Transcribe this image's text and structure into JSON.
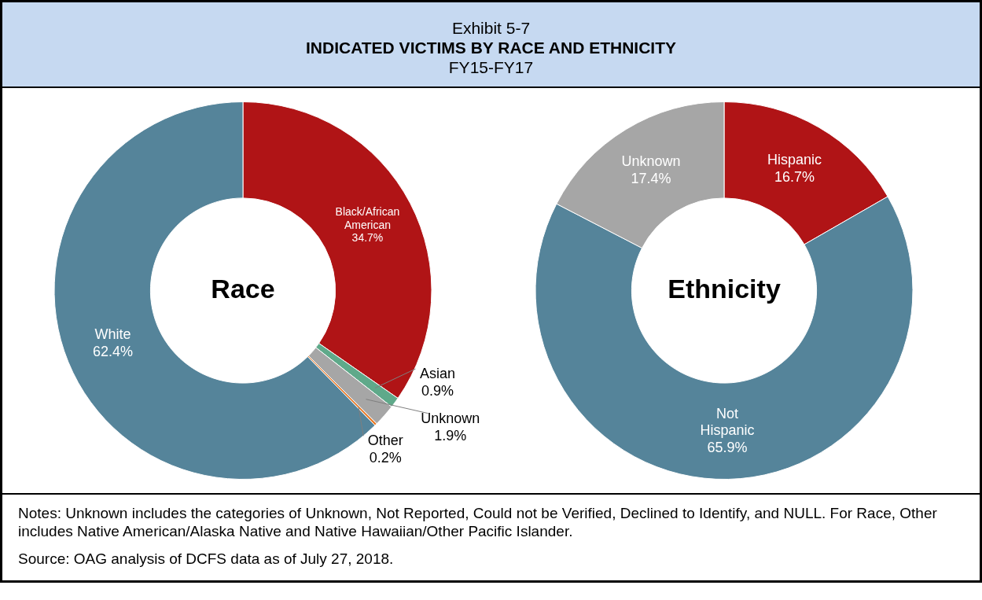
{
  "chart_data": [
    {
      "type": "other",
      "title": "INDICATED VICTIMS BY RACE AND ETHNICITY",
      "subtitle": "FY15-FY17",
      "annotations": [
        "Exhibit 5-7",
        "Notes: Unknown includes the categories of Unknown, Not Reported, Could not be Verified, Declined to Identify, and NULL.  For Race, Other includes Native American/Alaska Native and Native Hawaiian/Other Pacific Islander.",
        "Source: OAG analysis of DCFS data as of July 27, 2018."
      ]
    },
    {
      "type": "donut",
      "title": "Race",
      "categories": [
        "Black/African American",
        "Asian",
        "Unknown",
        "Other",
        "White"
      ],
      "values": [
        34.7,
        0.9,
        1.9,
        0.2,
        62.4
      ],
      "colors": [
        "#b01416",
        "#5fa98a",
        "#a6a6a6",
        "#e87722",
        "#55849a"
      ],
      "value_labels": [
        "34.7%",
        "0.9%",
        "1.9%",
        "0.2%",
        "62.4%"
      ]
    },
    {
      "type": "donut",
      "title": "Ethnicity",
      "categories": [
        "Hispanic",
        "Not Hispanic",
        "Unknown"
      ],
      "values": [
        16.7,
        65.9,
        17.4
      ],
      "colors": [
        "#b01416",
        "#55849a",
        "#a6a6a6"
      ],
      "value_labels": [
        "16.7%",
        "65.9%",
        "17.4%"
      ]
    }
  ]
}
